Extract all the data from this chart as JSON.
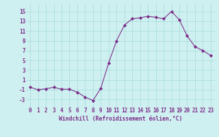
{
  "x": [
    0,
    1,
    2,
    3,
    4,
    5,
    6,
    7,
    8,
    9,
    10,
    11,
    12,
    13,
    14,
    15,
    16,
    17,
    18,
    19,
    20,
    21,
    22,
    23
  ],
  "y": [
    -0.5,
    -1.0,
    -0.8,
    -0.5,
    -0.9,
    -0.9,
    -1.5,
    -2.5,
    -3.2,
    -0.7,
    4.5,
    9.0,
    12.2,
    13.5,
    13.7,
    14.0,
    13.8,
    13.5,
    15.0,
    13.3,
    10.0,
    7.8,
    7.0,
    6.0
  ],
  "line_color": "#7B2D8B",
  "marker": "D",
  "marker_size": 2.2,
  "bg_color": "#cff0f0",
  "grid_color": "#aadddd",
  "xlabel": "Windchill (Refroidissement éolien,°C)",
  "xlabel_color": "#7B2D8B",
  "tick_color": "#7B2D8B",
  "yticks": [
    -3,
    -1,
    1,
    3,
    5,
    7,
    9,
    11,
    13,
    15
  ],
  "ylim": [
    -4.5,
    16.5
  ],
  "xlim": [
    -0.5,
    23.5
  ],
  "tick_fontsize": 5.5,
  "xlabel_fontsize": 5.8
}
